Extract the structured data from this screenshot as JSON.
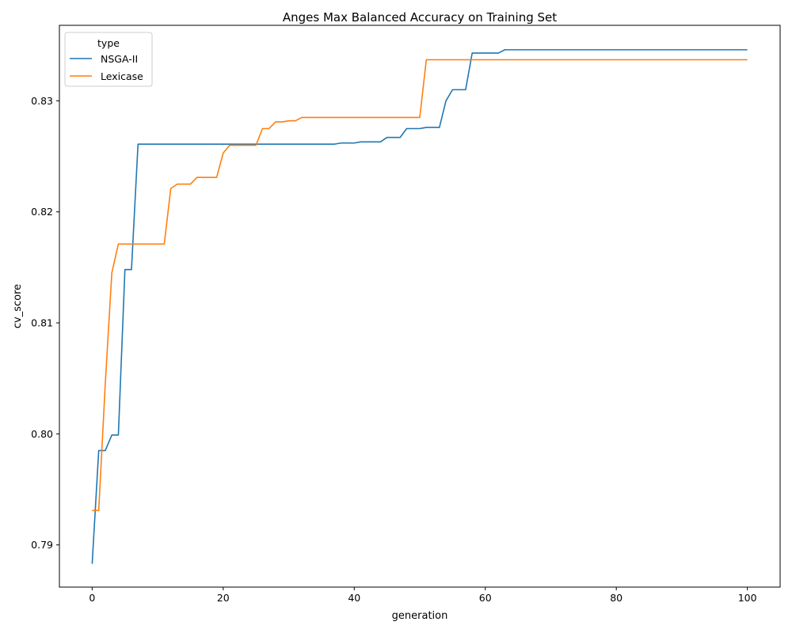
{
  "chart_data": {
    "type": "line",
    "title": "Anges Max Balanced Accuracy on Training Set",
    "xlabel": "generation",
    "ylabel": "cv_score",
    "xlim": [
      -5,
      105
    ],
    "ylim": [
      0.7862,
      0.8368
    ],
    "xticks": [
      0,
      20,
      40,
      60,
      80,
      100
    ],
    "xtick_labels": [
      "0",
      "20",
      "40",
      "60",
      "80",
      "100"
    ],
    "yticks": [
      0.79,
      0.8,
      0.81,
      0.82,
      0.83
    ],
    "ytick_labels": [
      "0.79",
      "0.80",
      "0.81",
      "0.82",
      "0.83"
    ],
    "grid": false,
    "legend": {
      "title": "type",
      "position": "top-left"
    },
    "series": [
      {
        "name": "NSGA-II",
        "color": "#1f77b4",
        "points": [
          [
            0,
            0.7883
          ],
          [
            1,
            0.7985
          ],
          [
            2,
            0.7985
          ],
          [
            3,
            0.7999
          ],
          [
            4,
            0.7999
          ],
          [
            5,
            0.8148
          ],
          [
            6,
            0.8148
          ],
          [
            7,
            0.8261
          ],
          [
            37,
            0.8261
          ],
          [
            38,
            0.8262
          ],
          [
            40,
            0.8262
          ],
          [
            41,
            0.8263
          ],
          [
            44,
            0.8263
          ],
          [
            45,
            0.8267
          ],
          [
            47,
            0.8267
          ],
          [
            48,
            0.8275
          ],
          [
            50,
            0.8275
          ],
          [
            51,
            0.8276
          ],
          [
            53,
            0.8276
          ],
          [
            54,
            0.83
          ],
          [
            55,
            0.831
          ],
          [
            57,
            0.831
          ],
          [
            58,
            0.8343
          ],
          [
            62,
            0.8343
          ],
          [
            63,
            0.8346
          ],
          [
            100,
            0.8346
          ]
        ]
      },
      {
        "name": "Lexicase",
        "color": "#ff7f0e",
        "points": [
          [
            0,
            0.7931
          ],
          [
            1,
            0.7931
          ],
          [
            2,
            0.8045
          ],
          [
            3,
            0.8145
          ],
          [
            4,
            0.8171
          ],
          [
            11,
            0.8171
          ],
          [
            12,
            0.8221
          ],
          [
            13,
            0.8225
          ],
          [
            15,
            0.8225
          ],
          [
            16,
            0.8231
          ],
          [
            19,
            0.8231
          ],
          [
            20,
            0.8253
          ],
          [
            21,
            0.826
          ],
          [
            25,
            0.826
          ],
          [
            26,
            0.8275
          ],
          [
            27,
            0.8275
          ],
          [
            28,
            0.8281
          ],
          [
            29,
            0.8281
          ],
          [
            30,
            0.8282
          ],
          [
            31,
            0.8282
          ],
          [
            32,
            0.8285
          ],
          [
            50,
            0.8285
          ],
          [
            51,
            0.8337
          ],
          [
            100,
            0.8337
          ]
        ]
      }
    ]
  }
}
